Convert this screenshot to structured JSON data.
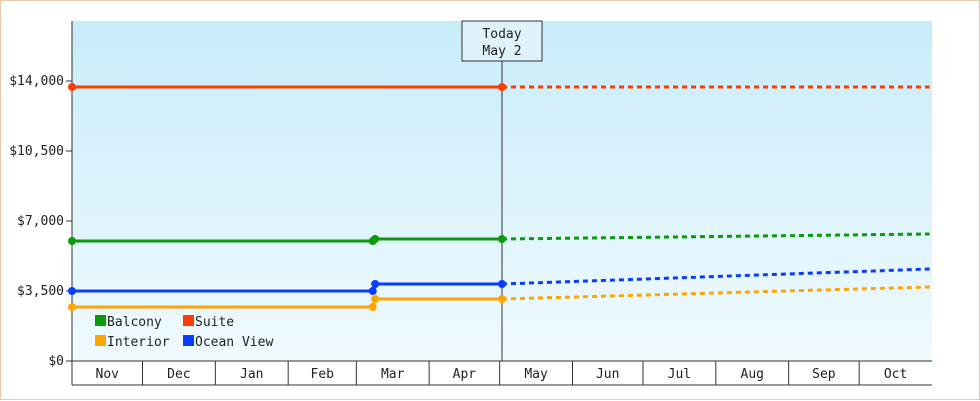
{
  "chart_data": {
    "type": "line",
    "title": "",
    "xlabel": "",
    "ylabel": "",
    "ylim": [
      0,
      17000
    ],
    "y_ticks": [
      0,
      3500,
      7000,
      10500,
      14000
    ],
    "y_tick_labels": [
      "$0",
      "$3,500",
      "$7,000",
      "$10,500",
      "$14,000"
    ],
    "months": [
      "Nov",
      "Dec",
      "Jan",
      "Feb",
      "Mar",
      "Apr",
      "May",
      "Jun",
      "Jul",
      "Aug",
      "Sep",
      "Oct"
    ],
    "today_marker": {
      "line1": "Today",
      "line2": "May 2"
    },
    "legend_placement": "bottom-left",
    "grid": false,
    "colors": {
      "background_top": "#c8ecfa",
      "background_bottom": "#f0fafe",
      "axis": "#333333"
    },
    "series": [
      {
        "name": "Suite",
        "color": "#ff3c00",
        "actual": [
          [
            "2023-11-01",
            13700
          ],
          [
            "2024-05-02",
            13700
          ]
        ],
        "forecast": [
          [
            "2024-05-02",
            13700
          ],
          [
            "2024-10-31",
            13700
          ]
        ]
      },
      {
        "name": "Balcony",
        "color": "#0a9a0a",
        "actual": [
          [
            "2023-11-01",
            6000
          ],
          [
            "2024-03-08",
            6000
          ],
          [
            "2024-03-09",
            6100
          ],
          [
            "2024-05-02",
            6100
          ]
        ],
        "forecast": [
          [
            "2024-05-02",
            6100
          ],
          [
            "2024-10-31",
            6350
          ]
        ]
      },
      {
        "name": "Ocean View",
        "color": "#0a3cff",
        "actual": [
          [
            "2023-11-01",
            3500
          ],
          [
            "2024-03-08",
            3500
          ],
          [
            "2024-03-09",
            3850
          ],
          [
            "2024-05-02",
            3850
          ]
        ],
        "forecast": [
          [
            "2024-05-02",
            3850
          ],
          [
            "2024-10-31",
            4600
          ]
        ]
      },
      {
        "name": "Interior",
        "color": "#ffa500",
        "actual": [
          [
            "2023-11-01",
            2700
          ],
          [
            "2024-03-08",
            2700
          ],
          [
            "2024-03-09",
            3100
          ],
          [
            "2024-05-02",
            3100
          ]
        ],
        "forecast": [
          [
            "2024-05-02",
            3100
          ],
          [
            "2024-10-31",
            3700
          ]
        ]
      }
    ],
    "legend_order": [
      "Balcony",
      "Suite",
      "Interior",
      "Ocean View"
    ]
  }
}
